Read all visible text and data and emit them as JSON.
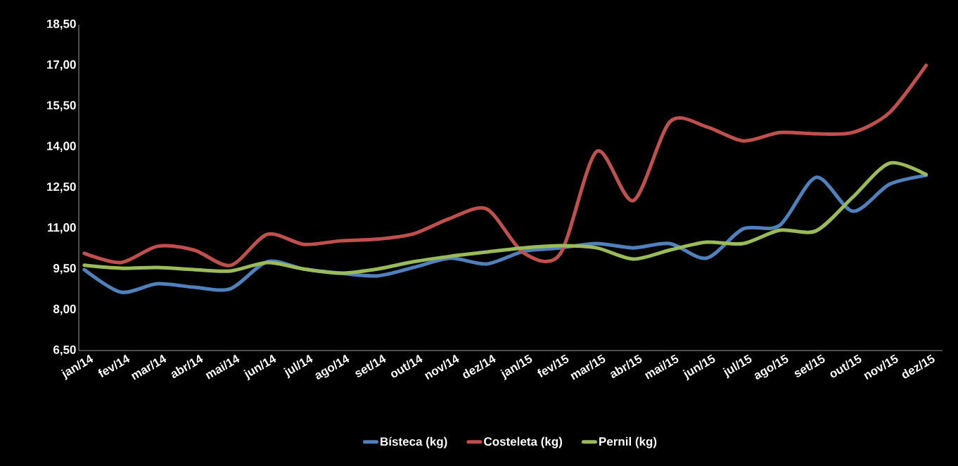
{
  "chart_data": {
    "type": "line",
    "categories": [
      "jan/14",
      "fev/14",
      "mar/14",
      "abr/14",
      "mai/14",
      "jun/14",
      "jul/14",
      "ago/14",
      "set/14",
      "out/14",
      "nov/14",
      "dez/14",
      "jan/15",
      "fev/15",
      "mar/15",
      "abr/15",
      "mai/15",
      "jun/15",
      "jul/15",
      "ago/15",
      "set/15",
      "out/15",
      "nov/15",
      "dez/15"
    ],
    "series": [
      {
        "name": "Bísteca (kg)",
        "color": "#4f81bd",
        "values": [
          9.48,
          8.65,
          8.96,
          8.83,
          8.78,
          9.77,
          9.5,
          9.35,
          9.25,
          9.56,
          9.9,
          9.69,
          10.15,
          10.28,
          10.44,
          10.28,
          10.44,
          9.9,
          10.98,
          11.11,
          12.88,
          11.63,
          12.62,
          12.95
        ]
      },
      {
        "name": "Costeleta (kg)",
        "color": "#c0504d",
        "values": [
          10.08,
          9.74,
          10.34,
          10.2,
          9.64,
          10.78,
          10.41,
          10.54,
          10.6,
          10.8,
          11.37,
          11.71,
          10.1,
          10.05,
          13.83,
          12.02,
          14.92,
          14.74,
          14.22,
          14.53,
          14.48,
          14.53,
          15.26,
          17.0
        ]
      },
      {
        "name": "Pernil (kg)",
        "color": "#9bbb59",
        "values": [
          9.64,
          9.53,
          9.56,
          9.48,
          9.43,
          9.74,
          9.5,
          9.35,
          9.5,
          9.77,
          9.97,
          10.13,
          10.28,
          10.36,
          10.28,
          9.87,
          10.2,
          10.49,
          10.44,
          10.93,
          10.91,
          12.15,
          13.4,
          12.98
        ]
      }
    ],
    "ylim": [
      6.5,
      18.5
    ],
    "yticks": [
      {
        "value": 6.5,
        "label": "6,50"
      },
      {
        "value": 8.0,
        "label": "8,00"
      },
      {
        "value": 9.5,
        "label": "9,50"
      },
      {
        "value": 11.0,
        "label": "11,00"
      },
      {
        "value": 12.5,
        "label": "12,50"
      },
      {
        "value": 14.0,
        "label": "14,00"
      },
      {
        "value": 15.5,
        "label": "15,50"
      },
      {
        "value": 17.0,
        "label": "17,00"
      },
      {
        "value": 18.5,
        "label": "18,50"
      }
    ],
    "grid": false,
    "legend": "bottom",
    "marker": "none",
    "line_style": "solid"
  }
}
